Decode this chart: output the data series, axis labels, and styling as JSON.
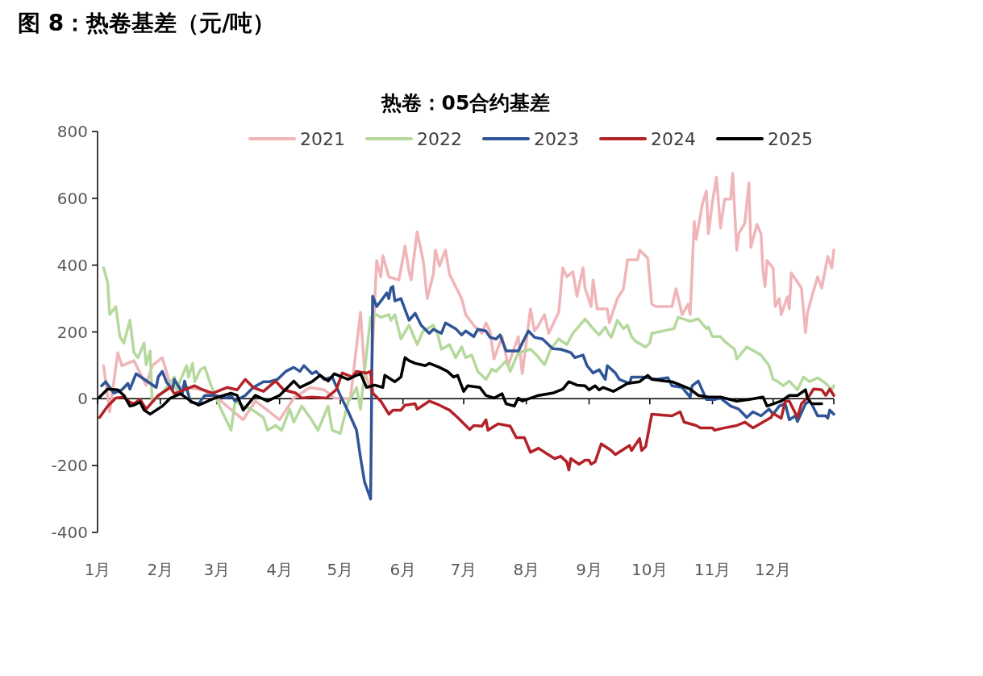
{
  "chart_data": {
    "type": "line",
    "title": "图 8：热卷基差（元/吨）",
    "subtitle": "热卷：05合约基差",
    "xlim": [
      "--01-01",
      "--12-31"
    ],
    "xticks": [
      {
        "value": "--01-01",
        "label": "1月"
      },
      {
        "value": "--02-01",
        "label": "2月"
      },
      {
        "value": "--03-01",
        "label": "3月"
      },
      {
        "value": "--04-01",
        "label": "4月"
      },
      {
        "value": "--05-01",
        "label": "5月"
      },
      {
        "value": "--06-01",
        "label": "6月"
      },
      {
        "value": "--07-01",
        "label": "7月"
      },
      {
        "value": "--08-01",
        "label": "8月"
      },
      {
        "value": "--09-01",
        "label": "9月"
      },
      {
        "value": "--10-01",
        "label": "10月"
      },
      {
        "value": "--11-01",
        "label": "11月"
      },
      {
        "value": "--12-01",
        "label": "12月"
      },
      {
        "value": "--12-31",
        "label": null
      }
    ],
    "ylim": [
      -400,
      800
    ],
    "yticks": [
      -400,
      -200,
      0,
      200,
      400,
      600,
      800
    ],
    "ref_lines": [
      {
        "axis": "y",
        "value": 0,
        "color": "#000000",
        "line_style": "solid"
      }
    ],
    "legend": "top",
    "grid": false,
    "line_style": "solid",
    "series": [
      {
        "name": "2021",
        "color": "#f0b5b8",
        "x": [
          "--01-04",
          "--01-07",
          "--01-11",
          "--01-13",
          "--01-19",
          "--01-25",
          "--01-28",
          "--02-02",
          "--02-06",
          "--02-22",
          "--03-03",
          "--03-14",
          "--03-20",
          "--03-27",
          "--04-01",
          "--04-08",
          "--04-16",
          "--04-23",
          "--04-28",
          "--05-06",
          "--05-11",
          "--05-13",
          "--05-16",
          "--05-19",
          "--05-21",
          "--05-22",
          "--05-25",
          "--05-30",
          "--06-02",
          "--06-04",
          "--06-05",
          "--06-08",
          "--06-11",
          "--06-13",
          "--06-16",
          "--06-17",
          "--06-19",
          "--06-22",
          "--06-24",
          "--06-26",
          "--06-30",
          "--07-02",
          "--07-06",
          "--07-10",
          "--07-12",
          "--07-14",
          "--07-16",
          "--07-20",
          "--07-23",
          "--07-28",
          "--07-30",
          "--08-03",
          "--08-05",
          "--08-07",
          "--08-10",
          "--08-12",
          "--08-17",
          "--08-19",
          "--08-21",
          "--08-24",
          "--08-26",
          "--08-29",
          "--08-30",
          "--09-02",
          "--09-03",
          "--09-05",
          "--09-10",
          "--09-11",
          "--09-15",
          "--09-18",
          "--09-20",
          "--09-25",
          "--09-26",
          "--09-30",
          "--10-02",
          "--10-04",
          "--10-12",
          "--10-14",
          "--10-17",
          "--10-20",
          "--10-21",
          "--10-23",
          "--10-24",
          "--10-27",
          "--10-29",
          "--10-30",
          "--11-01",
          "--11-03",
          "--11-05",
          "--11-07",
          "--11-10",
          "--11-11",
          "--11-13",
          "--11-14",
          "--11-17",
          "--11-19",
          "--11-20",
          "--11-23",
          "--11-25",
          "--11-26",
          "--11-27",
          "--11-28",
          "--12-01",
          "--12-02",
          "--12-04",
          "--12-05",
          "--12-08",
          "--12-09",
          "--12-10",
          "--12-15",
          "--12-17",
          "--12-18",
          "--12-21",
          "--12-23",
          "--12-25",
          "--12-28",
          "--12-30",
          "--12-31"
        ],
        "values": [
          99,
          -39,
          138,
          99,
          114,
          41,
          99,
          123,
          41,
          27,
          -7,
          -63,
          -7,
          -39,
          -63,
          2,
          34,
          27,
          2,
          0,
          259,
          82,
          27,
          414,
          365,
          428,
          365,
          356,
          457,
          380,
          356,
          500,
          414,
          300,
          373,
          445,
          397,
          445,
          373,
          348,
          300,
          252,
          220,
          196,
          227,
          203,
          119,
          186,
          99,
          186,
          75,
          269,
          203,
          220,
          252,
          196,
          259,
          392,
          365,
          380,
          307,
          392,
          331,
          276,
          356,
          269,
          269,
          227,
          300,
          329,
          416,
          416,
          445,
          421,
          283,
          276,
          276,
          329,
          252,
          283,
          252,
          530,
          477,
          583,
          622,
          494,
          590,
          663,
          511,
          598,
          598,
          675,
          445,
          494,
          525,
          646,
          453,
          522,
          494,
          380,
          336,
          414,
          390,
          276,
          300,
          252,
          305,
          269,
          377,
          331,
          198,
          259,
          324,
          365,
          331,
          426,
          392,
          445
        ]
      },
      {
        "name": "2022",
        "color": "#b5d99c",
        "x": [
          "--01-04",
          "--01-06",
          "--01-07",
          "--01-10",
          "--01-12",
          "--01-14",
          "--01-17",
          "--01-19",
          "--01-21",
          "--01-24",
          "--01-25",
          "--01-27",
          "--01-28",
          "--02-02",
          "--02-08",
          "--02-09",
          "--02-14",
          "--02-15",
          "--02-17",
          "--02-18",
          "--02-21",
          "--02-23",
          "--02-26",
          "--03-03",
          "--03-08",
          "--03-10",
          "--03-14",
          "--03-18",
          "--03-24",
          "--03-26",
          "--03-30",
          "--04-02",
          "--04-06",
          "--04-08",
          "--04-12",
          "--04-16",
          "--04-20",
          "--04-25",
          "--04-27",
          "--05-01",
          "--05-05",
          "--05-07",
          "--05-09",
          "--05-11",
          "--05-12",
          "--05-16",
          "--05-19",
          "--05-21",
          "--05-25",
          "--05-26",
          "--05-28",
          "--05-31",
          "--06-04",
          "--06-08",
          "--06-11",
          "--06-16",
          "--06-18",
          "--06-20",
          "--06-24",
          "--06-27",
          "--06-30",
          "--07-02",
          "--07-05",
          "--07-08",
          "--07-12",
          "--07-15",
          "--07-17",
          "--07-22",
          "--07-24",
          "--07-28",
          "--08-03",
          "--08-06",
          "--08-10",
          "--08-13",
          "--08-17",
          "--08-21",
          "--08-24",
          "--08-26",
          "--08-30",
          "--09-03",
          "--09-06",
          "--09-09",
          "--09-11",
          "--09-12",
          "--09-15",
          "--09-18",
          "--09-20",
          "--09-22",
          "--09-24",
          "--09-29",
          "--10-01",
          "--10-02",
          "--10-13",
          "--10-15",
          "--10-21",
          "--10-25",
          "--10-29",
          "--10-30",
          "--11-01",
          "--11-05",
          "--11-07",
          "--11-12",
          "--11-13",
          "--11-18",
          "--11-23",
          "--11-25",
          "--11-29",
          "--12-01",
          "--12-03",
          "--12-06",
          "--12-09",
          "--12-13",
          "--12-16",
          "--12-19",
          "--12-23",
          "--12-27",
          "--12-30",
          "--12-31"
        ],
        "values": [
          392,
          348,
          252,
          276,
          186,
          167,
          235,
          138,
          123,
          167,
          102,
          143,
          -7,
          17,
          65,
          27,
          99,
          65,
          106,
          51,
          89,
          94,
          41,
          -31,
          -94,
          -7,
          -22,
          -31,
          -56,
          -94,
          -80,
          -94,
          -31,
          -70,
          -22,
          -56,
          -94,
          -22,
          -94,
          -104,
          -7,
          10,
          34,
          -31,
          27,
          244,
          252,
          244,
          252,
          235,
          252,
          179,
          220,
          162,
          203,
          220,
          196,
          148,
          162,
          123,
          155,
          123,
          131,
          82,
          58,
          89,
          82,
          114,
          82,
          138,
          148,
          131,
          102,
          148,
          179,
          162,
          196,
          210,
          239,
          210,
          191,
          215,
          191,
          184,
          235,
          210,
          220,
          186,
          172,
          155,
          167,
          196,
          210,
          244,
          232,
          239,
          210,
          215,
          186,
          186,
          172,
          148,
          119,
          155,
          138,
          131,
          99,
          58,
          53,
          39,
          53,
          27,
          65,
          51,
          63,
          46,
          27,
          39
        ]
      },
      {
        "name": "2023",
        "color": "#2f5597",
        "x": [
          "--01-03",
          "--01-05",
          "--01-09",
          "--01-13",
          "--01-16",
          "--01-17",
          "--01-20",
          "--01-30",
          "--01-31",
          "--02-02",
          "--02-04",
          "--02-07",
          "--02-08",
          "--02-12",
          "--02-13",
          "--02-16",
          "--02-20",
          "--02-23",
          "--02-28",
          "--03-06",
          "--03-08",
          "--03-10",
          "--03-15",
          "--03-19",
          "--03-24",
          "--03-27",
          "--03-31",
          "--04-04",
          "--04-08",
          "--04-11",
          "--04-13",
          "--04-17",
          "--04-19",
          "--04-23",
          "--04-27",
          "--05-01",
          "--05-05",
          "--05-09",
          "--05-11",
          "--05-13",
          "--05-16",
          "--05-17",
          "--05-19",
          "--05-22",
          "--05-24",
          "--05-25",
          "--05-26",
          "--05-27",
          "--05-28",
          "--05-31",
          "--06-04",
          "--06-07",
          "--06-10",
          "--06-14",
          "--06-16",
          "--06-20",
          "--06-22",
          "--06-27",
          "--06-30",
          "--07-02",
          "--07-06",
          "--07-08",
          "--07-12",
          "--07-14",
          "--07-17",
          "--07-19",
          "--07-22",
          "--07-28",
          "--08-02",
          "--08-05",
          "--08-09",
          "--08-14",
          "--08-18",
          "--08-23",
          "--08-25",
          "--08-29",
          "--08-31",
          "--09-03",
          "--09-06",
          "--09-09",
          "--09-10",
          "--09-14",
          "--09-16",
          "--09-21",
          "--09-22",
          "--09-28",
          "--10-04",
          "--10-10",
          "--10-12",
          "--10-17",
          "--10-21",
          "--10-22",
          "--10-25",
          "--10-29",
          "--11-02",
          "--11-05",
          "--11-10",
          "--11-14",
          "--11-18",
          "--11-21",
          "--11-25",
          "--11-29",
          "--12-01",
          "--12-04",
          "--12-07",
          "--12-09",
          "--12-12",
          "--12-13",
          "--12-17",
          "--12-19",
          "--12-20",
          "--12-23",
          "--12-27",
          "--12-28",
          "--12-29",
          "--12-31"
        ],
        "values": [
          39,
          51,
          17,
          27,
          46,
          29,
          75,
          34,
          65,
          82,
          51,
          27,
          58,
          17,
          53,
          -10,
          -15,
          10,
          10,
          2,
          10,
          -7,
          10,
          34,
          51,
          51,
          58,
          82,
          94,
          82,
          99,
          75,
          82,
          58,
          65,
          10,
          -39,
          -94,
          -177,
          -249,
          -300,
          307,
          276,
          300,
          317,
          300,
          331,
          336,
          293,
          300,
          235,
          256,
          220,
          196,
          208,
          196,
          227,
          210,
          191,
          203,
          186,
          208,
          203,
          184,
          179,
          191,
          143,
          143,
          203,
          184,
          179,
          150,
          148,
          138,
          123,
          131,
          99,
          77,
          87,
          58,
          99,
          77,
          58,
          46,
          65,
          65,
          58,
          63,
          39,
          34,
          5,
          39,
          53,
          -2,
          -2,
          2,
          -22,
          -31,
          -56,
          -39,
          -51,
          -31,
          -46,
          -22,
          -15,
          -63,
          -51,
          -68,
          -15,
          -7,
          -15,
          -51,
          -51,
          -58,
          -34,
          -46
        ]
      },
      {
        "name": "2024",
        "color": "#b22228",
        "x": [
          "--01-02",
          "--01-06",
          "--01-10",
          "--01-14",
          "--01-17",
          "--01-19",
          "--01-22",
          "--01-25",
          "--01-31",
          "--02-06",
          "--02-08",
          "--02-18",
          "--02-22",
          "--02-27",
          "--03-06",
          "--03-11",
          "--03-15",
          "--03-19",
          "--03-24",
          "--03-30",
          "--04-03",
          "--04-09",
          "--04-12",
          "--04-17",
          "--04-24",
          "--04-29",
          "--05-02",
          "--05-07",
          "--05-09",
          "--05-14",
          "--05-16",
          "--05-17",
          "--05-21",
          "--05-25",
          "--05-27",
          "--05-31",
          "--06-02",
          "--06-07",
          "--06-08",
          "--06-14",
          "--06-19",
          "--06-24",
          "--06-28",
          "--07-04",
          "--07-06",
          "--07-10",
          "--07-12",
          "--07-13",
          "--07-18",
          "--07-24",
          "--07-27",
          "--07-31",
          "--08-03",
          "--08-07",
          "--08-11",
          "--08-15",
          "--08-18",
          "--08-21",
          "--08-22",
          "--08-23",
          "--08-27",
          "--08-30",
          "--09-01",
          "--09-02",
          "--09-04",
          "--09-07",
          "--09-12",
          "--09-14",
          "--09-21",
          "--09-22",
          "--09-26",
          "--09-27",
          "--09-29",
          "--10-02",
          "--10-12",
          "--10-16",
          "--10-18",
          "--10-24",
          "--10-26",
          "--11-01",
          "--11-02",
          "--11-07",
          "--11-13",
          "--11-17",
          "--11-21",
          "--11-26",
          "--11-30",
          "--12-01",
          "--12-05",
          "--12-07",
          "--12-09",
          "--12-13",
          "--12-15",
          "--12-19",
          "--12-21",
          "--12-25",
          "--12-27",
          "--12-29",
          "--12-31"
        ],
        "values": [
          -56,
          -22,
          2,
          5,
          -10,
          -15,
          -2,
          -31,
          10,
          34,
          15,
          39,
          27,
          17,
          34,
          27,
          58,
          34,
          22,
          53,
          27,
          17,
          2,
          5,
          2,
          27,
          77,
          65,
          82,
          77,
          82,
          17,
          -7,
          -46,
          -34,
          -34,
          -19,
          -15,
          -31,
          -7,
          -19,
          -34,
          -56,
          -92,
          -80,
          -82,
          -63,
          -94,
          -75,
          -82,
          -116,
          -116,
          -160,
          -148,
          -164,
          -179,
          -172,
          -189,
          -213,
          -179,
          -196,
          -184,
          -184,
          -196,
          -189,
          -135,
          -155,
          -167,
          -140,
          -155,
          -119,
          -155,
          -143,
          -46,
          -51,
          -39,
          -70,
          -80,
          -87,
          -87,
          -94,
          -87,
          -80,
          -70,
          -87,
          -70,
          -56,
          -44,
          -58,
          -7,
          -7,
          -56,
          -15,
          10,
          29,
          27,
          10,
          29,
          10
        ]
      },
      {
        "name": "2025",
        "color": "#000000",
        "x": [
          "--01-02",
          "--01-06",
          "--01-11",
          "--01-14",
          "--01-17",
          "--01-19",
          "--01-22",
          "--01-24",
          "--01-27",
          "--02-02",
          "--02-06",
          "--02-11",
          "--02-16",
          "--02-20",
          "--02-28",
          "--03-08",
          "--03-11",
          "--03-14",
          "--03-20",
          "--03-26",
          "--04-01",
          "--04-08",
          "--04-11",
          "--04-17",
          "--04-21",
          "--04-25",
          "--04-28",
          "--05-05",
          "--05-09",
          "--05-11",
          "--05-14",
          "--05-18",
          "--05-22",
          "--05-23",
          "--05-28",
          "--05-31",
          "--06-02",
          "--06-04",
          "--06-07",
          "--06-12",
          "--06-14",
          "--06-19",
          "--06-23",
          "--06-26",
          "--06-28",
          "--07-01",
          "--07-03",
          "--07-09",
          "--07-12",
          "--07-16",
          "--07-20",
          "--07-22",
          "--07-26",
          "--07-28",
          "--07-30",
          "--08-07",
          "--08-14",
          "--08-19",
          "--08-22",
          "--08-26",
          "--08-30",
          "--09-01",
          "--09-04",
          "--09-06",
          "--09-08",
          "--09-13",
          "--09-18",
          "--09-20",
          "--09-26",
          "--09-30",
          "--10-02",
          "--10-09",
          "--10-12",
          "--10-17",
          "--10-21",
          "--10-25",
          "--10-30",
          "--11-05",
          "--11-13",
          "--11-19",
          "--11-26",
          "--11-28",
          "--12-05",
          "--12-09",
          "--12-13",
          "--12-17",
          "--12-18",
          "--12-20",
          "--12-25"
        ],
        "values": [
          5,
          29,
          27,
          10,
          -22,
          -19,
          -10,
          -34,
          -46,
          -22,
          2,
          15,
          -7,
          -19,
          2,
          17,
          10,
          -34,
          10,
          -7,
          10,
          53,
          34,
          51,
          70,
          53,
          75,
          58,
          70,
          75,
          34,
          41,
          34,
          70,
          51,
          65,
          123,
          114,
          106,
          99,
          106,
          94,
          82,
          65,
          70,
          22,
          39,
          34,
          10,
          2,
          15,
          -15,
          -22,
          2,
          -7,
          10,
          17,
          29,
          51,
          41,
          39,
          27,
          39,
          27,
          34,
          22,
          39,
          46,
          51,
          70,
          58,
          53,
          51,
          39,
          29,
          10,
          5,
          5,
          -7,
          -2,
          5,
          -22,
          -7,
          10,
          10,
          27,
          2,
          -15,
          -15
        ]
      }
    ]
  }
}
